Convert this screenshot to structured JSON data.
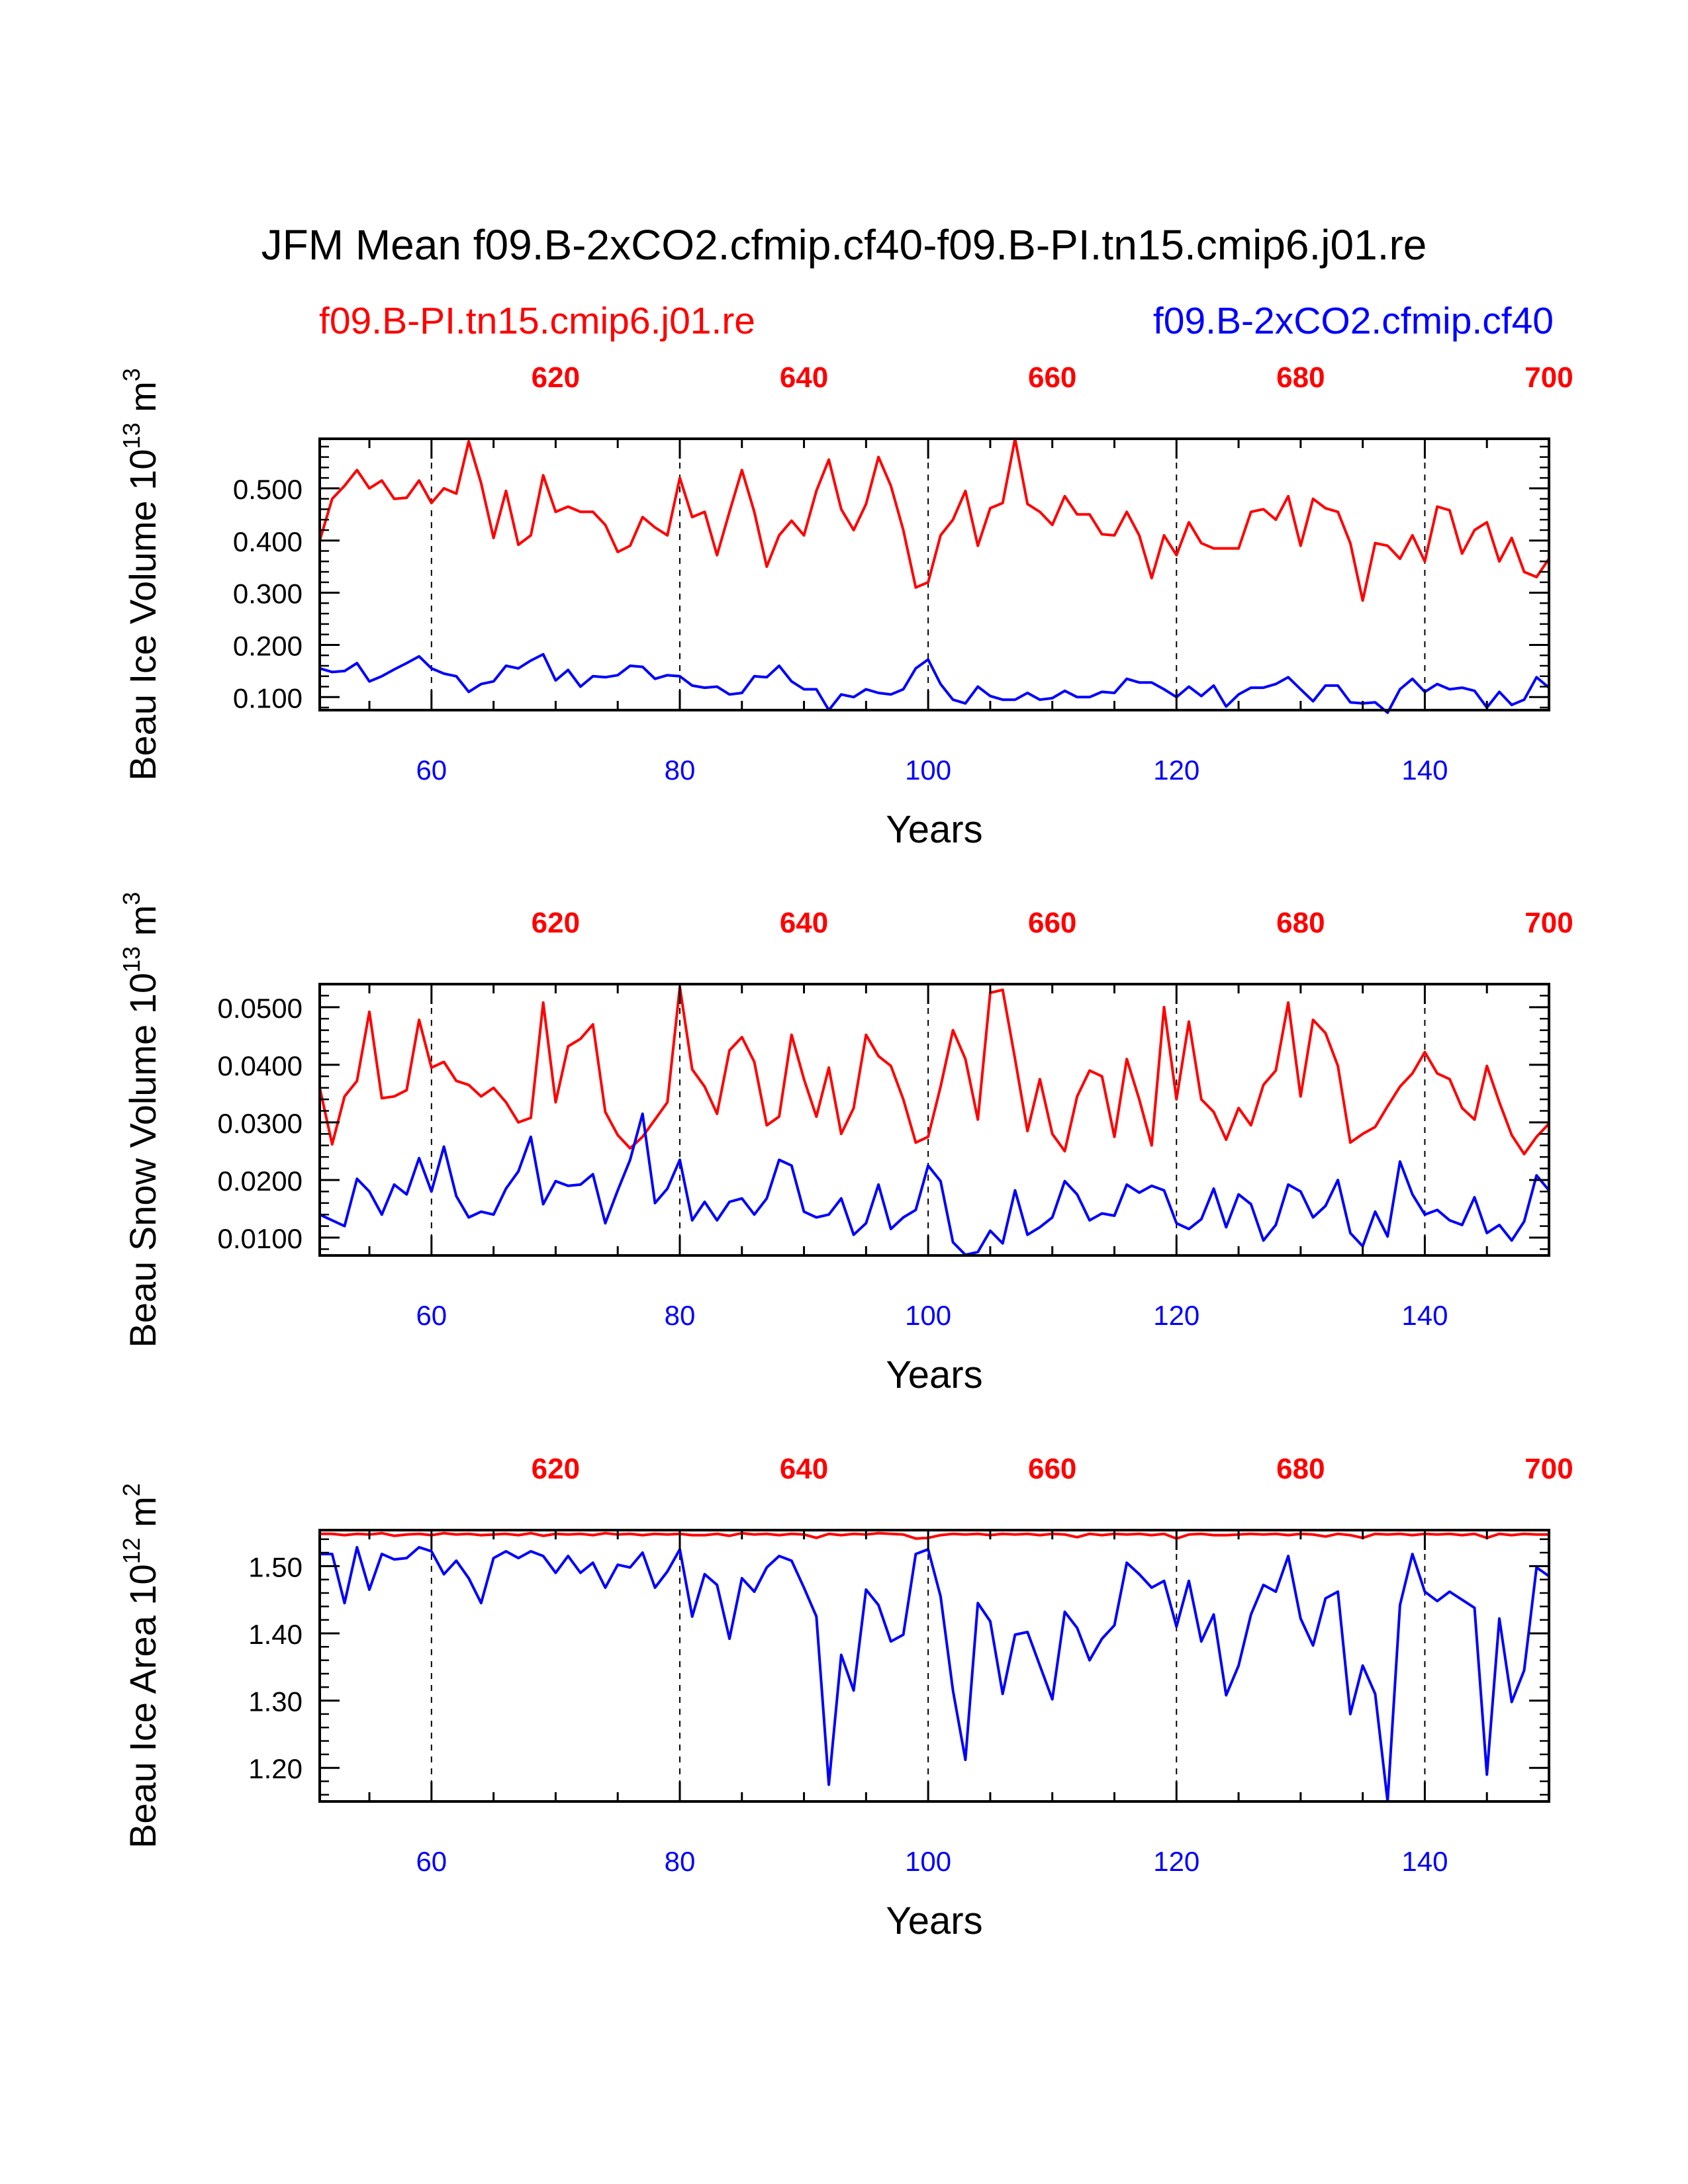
{
  "title": "JFM Mean f09.B-2xCO2.cfmip.cf40-f09.B-PI.tn15.cmip6.j01.re",
  "legend": {
    "left_label": "f09.B-PI.tn15.cmip6.j01.re",
    "right_label": "f09.B-2xCO2.cfmip.cf40"
  },
  "colors": {
    "red": "#ff0000",
    "blue": "#0000ff",
    "axis": "#000000"
  },
  "chart_data": [
    {
      "type": "line",
      "name": "ice-volume",
      "ylabel": "Beau Ice Volume",
      "yunit_base": "10",
      "yunit_exp": "13",
      "yunit_tail": "m",
      "yunit_tail_exp": "3",
      "xlabel": "Years",
      "xlim": [
        51,
        150
      ],
      "top_xlim": [
        601,
        700
      ],
      "ylim": [
        0.075,
        0.595
      ],
      "yticks": [
        0.1,
        0.2,
        0.3,
        0.4,
        0.5
      ],
      "ytick_labels": [
        "0.100",
        "0.200",
        "0.300",
        "0.400",
        "0.500"
      ],
      "xticks": [
        60,
        80,
        100,
        120,
        140
      ],
      "xtick_labels": [
        "60",
        "80",
        "100",
        "120",
        "140"
      ],
      "top_xticks": [
        620,
        640,
        660,
        680,
        700
      ],
      "top_xtick_labels": [
        "620",
        "640",
        "660",
        "680",
        "700"
      ],
      "dashed_x": [
        60,
        80,
        100,
        120,
        140
      ],
      "series": [
        {
          "name": "f09.B-PI.tn15.cmip6.j01.re",
          "color": "#ff0000",
          "x_start": 51,
          "values": [
            0.4,
            0.48,
            0.505,
            0.535,
            0.5,
            0.515,
            0.48,
            0.482,
            0.515,
            0.472,
            0.5,
            0.49,
            0.59,
            0.51,
            0.405,
            0.495,
            0.392,
            0.41,
            0.525,
            0.455,
            0.465,
            0.455,
            0.455,
            0.43,
            0.378,
            0.39,
            0.445,
            0.425,
            0.41,
            0.52,
            0.445,
            0.455,
            0.372,
            0.455,
            0.535,
            0.455,
            0.35,
            0.41,
            0.438,
            0.41,
            0.495,
            0.555,
            0.46,
            0.42,
            0.47,
            0.56,
            0.505,
            0.42,
            0.31,
            0.32,
            0.41,
            0.44,
            0.495,
            0.39,
            0.462,
            0.472,
            0.595,
            0.47,
            0.455,
            0.43,
            0.485,
            0.45,
            0.45,
            0.412,
            0.41,
            0.455,
            0.41,
            0.328,
            0.41,
            0.372,
            0.435,
            0.395,
            0.385,
            0.385,
            0.385,
            0.455,
            0.46,
            0.44,
            0.485,
            0.39,
            0.48,
            0.462,
            0.455,
            0.395,
            0.285,
            0.395,
            0.39,
            0.365,
            0.41,
            0.36,
            0.465,
            0.458,
            0.375,
            0.42,
            0.435,
            0.36,
            0.405,
            0.34,
            0.33,
            0.365
          ]
        },
        {
          "name": "f09.B-2xCO2.cfmip.cf40",
          "color": "#0000ff",
          "x_start": 51,
          "values": [
            0.155,
            0.148,
            0.15,
            0.165,
            0.13,
            0.14,
            0.153,
            0.165,
            0.178,
            0.155,
            0.145,
            0.14,
            0.11,
            0.125,
            0.13,
            0.16,
            0.155,
            0.17,
            0.182,
            0.132,
            0.152,
            0.12,
            0.14,
            0.138,
            0.142,
            0.16,
            0.158,
            0.135,
            0.142,
            0.14,
            0.122,
            0.118,
            0.12,
            0.105,
            0.108,
            0.14,
            0.138,
            0.16,
            0.13,
            0.115,
            0.115,
            0.075,
            0.105,
            0.1,
            0.115,
            0.108,
            0.105,
            0.115,
            0.155,
            0.172,
            0.125,
            0.095,
            0.088,
            0.12,
            0.102,
            0.095,
            0.095,
            0.108,
            0.095,
            0.098,
            0.112,
            0.1,
            0.1,
            0.11,
            0.108,
            0.135,
            0.128,
            0.128,
            0.115,
            0.1,
            0.12,
            0.102,
            0.122,
            0.082,
            0.105,
            0.118,
            0.118,
            0.125,
            0.138,
            0.115,
            0.092,
            0.122,
            0.122,
            0.09,
            0.088,
            0.09,
            0.07,
            0.115,
            0.135,
            0.11,
            0.125,
            0.115,
            0.118,
            0.112,
            0.08,
            0.11,
            0.085,
            0.095,
            0.138,
            0.118
          ]
        }
      ]
    },
    {
      "type": "line",
      "name": "snow-volume",
      "ylabel": "Beau Snow Volume",
      "yunit_base": "10",
      "yunit_exp": "13",
      "yunit_tail": "m",
      "yunit_tail_exp": "3",
      "xlabel": "Years",
      "xlim": [
        51,
        150
      ],
      "top_xlim": [
        601,
        700
      ],
      "ylim": [
        0.0069,
        0.054
      ],
      "yticks": [
        0.01,
        0.02,
        0.03,
        0.04,
        0.05
      ],
      "ytick_labels": [
        "0.0100",
        "0.0200",
        "0.0300",
        "0.0400",
        "0.0500"
      ],
      "xticks": [
        60,
        80,
        100,
        120,
        140
      ],
      "xtick_labels": [
        "60",
        "80",
        "100",
        "120",
        "140"
      ],
      "top_xticks": [
        620,
        640,
        660,
        680,
        700
      ],
      "top_xtick_labels": [
        "620",
        "640",
        "660",
        "680",
        "700"
      ],
      "dashed_x": [
        60,
        80,
        100,
        120,
        140
      ],
      "series": [
        {
          "name": "f09.B-PI.tn15.cmip6.j01.re",
          "color": "#ff0000",
          "x_start": 51,
          "values": [
            0.036,
            0.0262,
            0.0345,
            0.0372,
            0.0492,
            0.0342,
            0.0345,
            0.0356,
            0.0478,
            0.0395,
            0.0405,
            0.0372,
            0.0365,
            0.0345,
            0.036,
            0.0335,
            0.03,
            0.0308,
            0.0508,
            0.0335,
            0.0432,
            0.0445,
            0.047,
            0.0318,
            0.0278,
            0.0255,
            0.0275,
            0.0305,
            0.0335,
            0.0535,
            0.0392,
            0.0362,
            0.0315,
            0.0425,
            0.0448,
            0.0405,
            0.0295,
            0.031,
            0.0452,
            0.0375,
            0.031,
            0.0395,
            0.028,
            0.0325,
            0.0452,
            0.0415,
            0.0398,
            0.034,
            0.0265,
            0.0275,
            0.0362,
            0.046,
            0.041,
            0.0305,
            0.0525,
            0.053,
            0.041,
            0.0285,
            0.0375,
            0.028,
            0.025,
            0.0345,
            0.039,
            0.038,
            0.0275,
            0.041,
            0.034,
            0.026,
            0.05,
            0.034,
            0.0475,
            0.034,
            0.0318,
            0.027,
            0.0325,
            0.0295,
            0.0365,
            0.039,
            0.0508,
            0.0345,
            0.0478,
            0.0455,
            0.0398,
            0.0265,
            0.028,
            0.0292,
            0.0328,
            0.0362,
            0.0385,
            0.0422,
            0.0385,
            0.0375,
            0.0325,
            0.0305,
            0.0398,
            0.0335,
            0.0278,
            0.0245,
            0.0275,
            0.0298
          ]
        },
        {
          "name": "f09.B-2xCO2.cfmip.cf40",
          "color": "#0000ff",
          "x_start": 51,
          "values": [
            0.014,
            0.013,
            0.012,
            0.0202,
            0.018,
            0.014,
            0.0192,
            0.0175,
            0.0238,
            0.018,
            0.0258,
            0.0172,
            0.0135,
            0.0145,
            0.014,
            0.0185,
            0.0215,
            0.0275,
            0.0158,
            0.0198,
            0.019,
            0.0192,
            0.021,
            0.0125,
            0.0182,
            0.0235,
            0.0315,
            0.016,
            0.0185,
            0.0235,
            0.013,
            0.0162,
            0.013,
            0.0162,
            0.0168,
            0.014,
            0.0168,
            0.0235,
            0.0225,
            0.0145,
            0.0135,
            0.014,
            0.0168,
            0.0105,
            0.0125,
            0.0192,
            0.0115,
            0.0135,
            0.0148,
            0.0225,
            0.0198,
            0.0092,
            0.007,
            0.0075,
            0.0112,
            0.009,
            0.0182,
            0.0105,
            0.0118,
            0.0135,
            0.0198,
            0.0175,
            0.013,
            0.0142,
            0.0138,
            0.0192,
            0.0178,
            0.019,
            0.0182,
            0.0125,
            0.0115,
            0.0132,
            0.0185,
            0.0118,
            0.0175,
            0.0158,
            0.0095,
            0.0122,
            0.0192,
            0.018,
            0.0135,
            0.0155,
            0.02,
            0.0108,
            0.0085,
            0.0145,
            0.0102,
            0.0232,
            0.0175,
            0.014,
            0.0148,
            0.013,
            0.0122,
            0.017,
            0.0108,
            0.0122,
            0.0095,
            0.0128,
            0.0208,
            0.0182
          ]
        }
      ]
    },
    {
      "type": "line",
      "name": "ice-area",
      "ylabel": "Beau Ice Area",
      "yunit_base": "10",
      "yunit_exp": "12",
      "yunit_tail": "m",
      "yunit_tail_exp": "2",
      "xlabel": "Years",
      "xlim": [
        51,
        150
      ],
      "top_xlim": [
        601,
        700
      ],
      "ylim": [
        1.15,
        1.5535
      ],
      "yticks": [
        1.2,
        1.3,
        1.4,
        1.5
      ],
      "ytick_labels": [
        "1.20",
        "1.30",
        "1.40",
        "1.50"
      ],
      "xticks": [
        60,
        80,
        100,
        120,
        140
      ],
      "xtick_labels": [
        "60",
        "80",
        "100",
        "120",
        "140"
      ],
      "top_xticks": [
        620,
        640,
        660,
        680,
        700
      ],
      "top_xtick_labels": [
        "620",
        "640",
        "660",
        "680",
        "700"
      ],
      "dashed_x": [
        60,
        80,
        100,
        120,
        140
      ],
      "series": [
        {
          "name": "f09.B-PI.tn15.cmip6.j01.re",
          "color": "#ff0000",
          "x_start": 51,
          "values": [
            1.548,
            1.548,
            1.546,
            1.548,
            1.547,
            1.549,
            1.545,
            1.547,
            1.548,
            1.546,
            1.549,
            1.547,
            1.548,
            1.546,
            1.547,
            1.548,
            1.546,
            1.549,
            1.545,
            1.548,
            1.547,
            1.548,
            1.546,
            1.549,
            1.547,
            1.548,
            1.546,
            1.548,
            1.547,
            1.548,
            1.546,
            1.546,
            1.548,
            1.545,
            1.549,
            1.547,
            1.548,
            1.546,
            1.548,
            1.547,
            1.542,
            1.548,
            1.546,
            1.548,
            1.547,
            1.549,
            1.548,
            1.547,
            1.541,
            1.542,
            1.546,
            1.548,
            1.547,
            1.548,
            1.546,
            1.548,
            1.547,
            1.548,
            1.546,
            1.548,
            1.547,
            1.543,
            1.548,
            1.546,
            1.548,
            1.547,
            1.548,
            1.546,
            1.548,
            1.541,
            1.547,
            1.548,
            1.546,
            1.546,
            1.547,
            1.548,
            1.547,
            1.548,
            1.546,
            1.548,
            1.547,
            1.544,
            1.548,
            1.546,
            1.542,
            1.548,
            1.547,
            1.548,
            1.546,
            1.548,
            1.547,
            1.548,
            1.546,
            1.548,
            1.542,
            1.548,
            1.546,
            1.548,
            1.547,
            1.547
          ]
        },
        {
          "name": "f09.B-2xCO2.cfmip.cf40",
          "color": "#0000ff",
          "x_start": 51,
          "values": [
            1.518,
            1.518,
            1.445,
            1.528,
            1.465,
            1.518,
            1.51,
            1.512,
            1.528,
            1.522,
            1.488,
            1.508,
            1.482,
            1.445,
            1.512,
            1.522,
            1.512,
            1.522,
            1.515,
            1.49,
            1.515,
            1.49,
            1.505,
            1.468,
            1.502,
            1.498,
            1.52,
            1.468,
            1.492,
            1.525,
            1.425,
            1.488,
            1.472,
            1.392,
            1.482,
            1.462,
            1.498,
            1.515,
            1.508,
            1.468,
            1.425,
            1.175,
            1.368,
            1.315,
            1.465,
            1.442,
            1.388,
            1.398,
            1.518,
            1.525,
            1.455,
            1.315,
            1.212,
            1.445,
            1.418,
            1.31,
            1.398,
            1.402,
            1.352,
            1.302,
            1.432,
            1.408,
            1.36,
            1.392,
            1.412,
            1.505,
            1.488,
            1.468,
            1.478,
            1.41,
            1.478,
            1.388,
            1.428,
            1.308,
            1.352,
            1.428,
            1.472,
            1.462,
            1.515,
            1.422,
            1.382,
            1.452,
            1.462,
            1.28,
            1.352,
            1.31,
            1.15,
            1.442,
            1.518,
            1.462,
            1.448,
            1.462,
            1.45,
            1.438,
            1.19,
            1.422,
            1.298,
            1.345,
            1.498,
            1.485
          ]
        }
      ]
    }
  ]
}
